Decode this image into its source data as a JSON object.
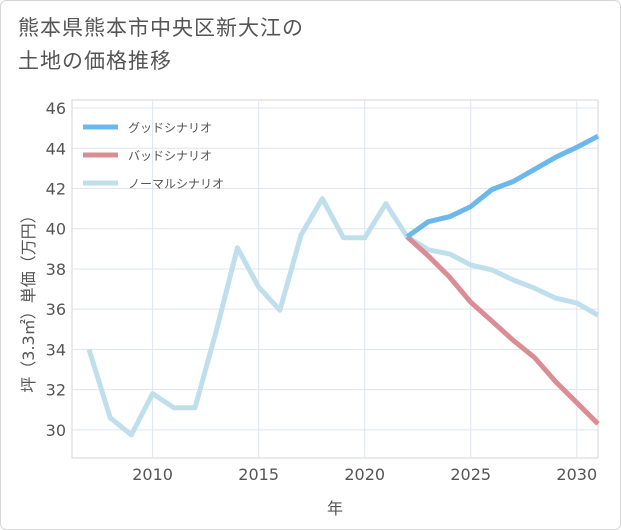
{
  "title_line1": "熊本県熊本市中央区新大江の",
  "title_line2": "土地の価格推移",
  "chart_data": {
    "type": "line",
    "xlabel": "年",
    "ylabel": "坪（3.3㎡）単価（万円）",
    "xlim": [
      2006.2,
      2031
    ],
    "ylim": [
      28.6,
      46.4
    ],
    "xticks": [
      2010,
      2015,
      2020,
      2025,
      2030
    ],
    "yticks": [
      30,
      32,
      34,
      36,
      38,
      40,
      42,
      44,
      46
    ],
    "legend_position": "top-left",
    "series": [
      {
        "name": "グッドシナリオ",
        "color": "#6cb8ec",
        "x": [
          2022,
          2023,
          2024,
          2025,
          2026,
          2027,
          2028,
          2029,
          2030,
          2031
        ],
        "y": [
          39.6,
          40.35,
          40.6,
          41.1,
          41.95,
          42.35,
          42.95,
          43.55,
          44.05,
          44.6
        ]
      },
      {
        "name": "バッドシナリオ",
        "color": "#db8d94",
        "x": [
          2022,
          2023,
          2024,
          2025,
          2026,
          2027,
          2028,
          2029,
          2030,
          2031
        ],
        "y": [
          39.6,
          38.65,
          37.6,
          36.35,
          35.4,
          34.45,
          33.6,
          32.4,
          31.35,
          30.3
        ]
      },
      {
        "name": "ノーマルシナリオ",
        "color": "#c0dfec",
        "x": [
          2007,
          2008,
          2009,
          2010,
          2011,
          2012,
          2013,
          2014,
          2015,
          2016,
          2017,
          2018,
          2019,
          2020,
          2021,
          2022,
          2023,
          2024,
          2025,
          2026,
          2027,
          2028,
          2029,
          2030,
          2031
        ],
        "y": [
          34.0,
          30.6,
          29.75,
          31.8,
          31.1,
          31.1,
          34.9,
          39.05,
          37.1,
          35.95,
          39.7,
          41.5,
          39.55,
          39.55,
          41.25,
          39.6,
          38.95,
          38.75,
          38.2,
          37.95,
          37.45,
          37.05,
          36.55,
          36.3,
          35.7
        ]
      }
    ]
  }
}
